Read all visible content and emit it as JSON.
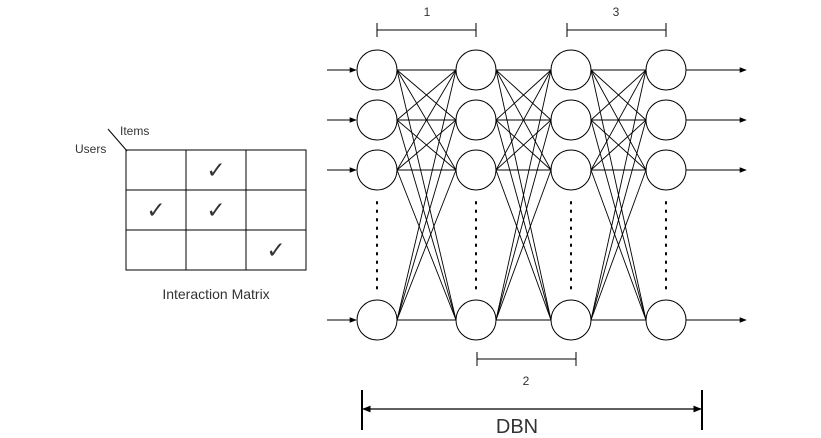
{
  "matrix": {
    "rows_label": "Users",
    "cols_label": "Items",
    "caption": "Interaction Matrix",
    "rows": 3,
    "cols": 3,
    "checks": [
      [
        0,
        1
      ],
      [
        1,
        0
      ],
      [
        1,
        1
      ],
      [
        2,
        2
      ]
    ],
    "check_symbol": "✓",
    "check_color": "#1e7b1e"
  },
  "network": {
    "layers": 4,
    "visible_nodes_per_layer": 4,
    "ellipsis_after_node": 3,
    "segment_labels": {
      "first": "1",
      "second": "2",
      "third": "3"
    },
    "model_label": "DBN"
  },
  "colors": {
    "stroke": "#000000",
    "text": "#333333"
  }
}
